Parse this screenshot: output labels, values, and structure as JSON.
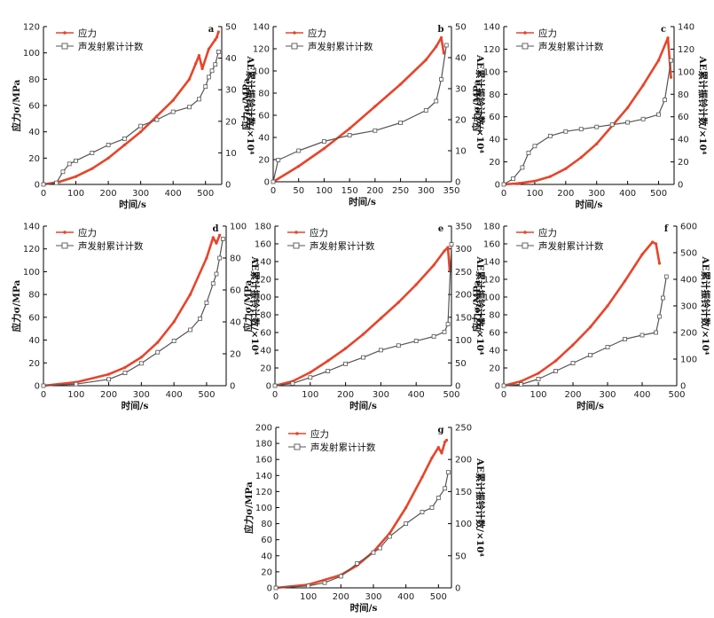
{
  "figure": {
    "legend": {
      "stress": "应力",
      "ae": "声发射累计计数"
    },
    "xlabel": "时间/s",
    "ylabel_left": "应力σ/MPa",
    "ylabel_right": "AE累计振铃计数/×10⁴",
    "colors": {
      "stress": "#e8442a",
      "ae": "#555555",
      "axis": "#000000"
    }
  },
  "chart_data": [
    {
      "panel": "a",
      "type": "line",
      "xlim": [
        0,
        550
      ],
      "xticks": [
        0,
        100,
        200,
        300,
        400,
        500
      ],
      "ylim_left": [
        0,
        120
      ],
      "yticks_left": [
        0,
        20,
        40,
        60,
        80,
        100,
        120
      ],
      "ylim_right": [
        0,
        50
      ],
      "yticks_right": [
        0,
        10,
        20,
        30,
        40,
        50
      ],
      "series": [
        {
          "name": "应力",
          "axis": "left",
          "x": [
            0,
            50,
            100,
            150,
            200,
            250,
            300,
            350,
            400,
            450,
            470,
            480,
            490,
            510,
            530,
            535,
            540
          ],
          "y": [
            0,
            2,
            6,
            12,
            20,
            30,
            40,
            52,
            64,
            80,
            92,
            98,
            88,
            103,
            110,
            112,
            116
          ]
        },
        {
          "name": "声发射累计计数",
          "axis": "right",
          "x": [
            0,
            40,
            60,
            80,
            100,
            150,
            200,
            250,
            300,
            350,
            400,
            450,
            480,
            500,
            510,
            520,
            530,
            540
          ],
          "y": [
            0,
            0.5,
            4,
            6.5,
            7.5,
            10,
            12.5,
            14.5,
            18.5,
            20.5,
            23,
            24.5,
            27,
            31,
            34,
            36,
            38,
            42
          ]
        }
      ]
    },
    {
      "panel": "b",
      "type": "line",
      "xlim": [
        0,
        350
      ],
      "xticks": [
        0,
        50,
        100,
        150,
        200,
        250,
        300,
        350
      ],
      "ylim_left": [
        0,
        140
      ],
      "yticks_left": [
        0,
        20,
        40,
        60,
        80,
        100,
        120,
        140
      ],
      "ylim_right": [
        0,
        50
      ],
      "yticks_right": [
        0,
        10,
        20,
        30,
        40,
        50
      ],
      "series": [
        {
          "name": "应力",
          "axis": "left",
          "x": [
            0,
            50,
            100,
            150,
            200,
            250,
            300,
            320,
            330,
            335
          ],
          "y": [
            0,
            14,
            30,
            48,
            68,
            88,
            110,
            122,
            130,
            116
          ]
        },
        {
          "name": "声发射累计计数",
          "axis": "right",
          "x": [
            0,
            10,
            50,
            100,
            150,
            200,
            250,
            300,
            320,
            330,
            340
          ],
          "y": [
            0,
            7,
            10,
            13,
            15,
            16.5,
            19,
            23,
            26,
            33,
            44
          ]
        }
      ]
    },
    {
      "panel": "c",
      "type": "line",
      "xlim": [
        0,
        550
      ],
      "xticks": [
        0,
        100,
        200,
        300,
        400,
        500
      ],
      "ylim_left": [
        0,
        140
      ],
      "yticks_left": [
        0,
        20,
        40,
        60,
        80,
        100,
        120,
        140
      ],
      "ylim_right": [
        0,
        140
      ],
      "yticks_right": [
        0,
        20,
        40,
        60,
        80,
        100,
        120,
        140
      ],
      "series": [
        {
          "name": "应力",
          "axis": "left",
          "x": [
            0,
            50,
            100,
            150,
            200,
            250,
            300,
            350,
            400,
            450,
            500,
            530,
            540
          ],
          "y": [
            0,
            1,
            3,
            7,
            14,
            24,
            36,
            52,
            68,
            88,
            110,
            130,
            95
          ]
        },
        {
          "name": "声发射累计计数",
          "axis": "right",
          "x": [
            0,
            30,
            60,
            80,
            100,
            150,
            200,
            250,
            300,
            350,
            400,
            450,
            500,
            520,
            540
          ],
          "y": [
            0,
            5,
            15,
            28,
            34,
            43,
            47,
            49,
            51,
            53,
            55,
            58,
            62,
            75,
            110
          ]
        }
      ]
    },
    {
      "panel": "d",
      "type": "line",
      "xlim": [
        0,
        560
      ],
      "xticks": [
        0,
        100,
        200,
        300,
        400,
        500
      ],
      "ylim_left": [
        0,
        140
      ],
      "yticks_left": [
        0,
        20,
        40,
        60,
        80,
        100,
        120,
        140
      ],
      "ylim_right": [
        0,
        100
      ],
      "yticks_right": [
        0,
        20,
        40,
        60,
        80,
        100
      ],
      "series": [
        {
          "name": "应力",
          "axis": "left",
          "x": [
            0,
            100,
            200,
            250,
            300,
            350,
            400,
            450,
            500,
            520,
            530,
            540
          ],
          "y": [
            0,
            3,
            10,
            16,
            25,
            38,
            56,
            80,
            112,
            130,
            125,
            132
          ]
        },
        {
          "name": "声发射累计计数",
          "axis": "right",
          "x": [
            0,
            100,
            200,
            250,
            300,
            350,
            400,
            450,
            480,
            500,
            520,
            530,
            540,
            550
          ],
          "y": [
            0,
            1,
            4,
            8,
            14,
            21,
            28,
            35,
            42,
            52,
            64,
            70,
            80,
            92
          ]
        }
      ]
    },
    {
      "panel": "e",
      "type": "line",
      "xlim": [
        0,
        500
      ],
      "xticks": [
        0,
        100,
        200,
        300,
        400,
        500
      ],
      "ylim_left": [
        0,
        180
      ],
      "yticks_left": [
        0,
        20,
        40,
        60,
        80,
        100,
        120,
        140,
        160,
        180
      ],
      "ylim_right": [
        0,
        350
      ],
      "yticks_right": [
        0,
        50,
        100,
        150,
        200,
        250,
        300,
        350
      ],
      "series": [
        {
          "name": "应力",
          "axis": "left",
          "x": [
            0,
            50,
            100,
            150,
            200,
            250,
            300,
            350,
            400,
            450,
            480,
            490,
            495
          ],
          "y": [
            0,
            5,
            15,
            28,
            42,
            58,
            76,
            94,
            114,
            136,
            152,
            156,
            130
          ]
        },
        {
          "name": "声发射累计计数",
          "axis": "right",
          "x": [
            0,
            50,
            100,
            150,
            200,
            250,
            300,
            350,
            400,
            450,
            480,
            490,
            500
          ],
          "y": [
            0,
            5,
            18,
            32,
            48,
            62,
            78,
            88,
            98,
            108,
            118,
            135,
            310
          ]
        }
      ]
    },
    {
      "panel": "f",
      "type": "line",
      "xlim": [
        0,
        500
      ],
      "xticks": [
        0,
        100,
        200,
        300,
        400,
        500
      ],
      "ylim_left": [
        0,
        180
      ],
      "yticks_left": [
        0,
        20,
        40,
        60,
        80,
        100,
        120,
        140,
        160,
        180
      ],
      "ylim_right": [
        0,
        600
      ],
      "yticks_right": [
        0,
        100,
        200,
        300,
        400,
        500,
        600
      ],
      "series": [
        {
          "name": "应力",
          "axis": "left",
          "x": [
            0,
            50,
            100,
            150,
            200,
            250,
            300,
            350,
            400,
            430,
            440,
            450
          ],
          "y": [
            0,
            5,
            14,
            28,
            46,
            66,
            90,
            118,
            148,
            162,
            160,
            138
          ]
        },
        {
          "name": "声发射累计计数",
          "axis": "right",
          "x": [
            0,
            50,
            100,
            150,
            200,
            250,
            300,
            350,
            400,
            440,
            450,
            460,
            470
          ],
          "y": [
            0,
            5,
            25,
            55,
            85,
            115,
            145,
            175,
            190,
            200,
            260,
            330,
            410
          ]
        }
      ]
    },
    {
      "panel": "g",
      "type": "line",
      "xlim": [
        0,
        540
      ],
      "xticks": [
        0,
        100,
        200,
        300,
        400,
        500
      ],
      "ylim_left": [
        0,
        200
      ],
      "yticks_left": [
        0,
        20,
        40,
        60,
        80,
        100,
        120,
        140,
        160,
        180,
        200
      ],
      "ylim_right": [
        0,
        250
      ],
      "yticks_right": [
        0,
        50,
        100,
        150,
        200,
        250
      ],
      "series": [
        {
          "name": "应力",
          "axis": "left",
          "x": [
            0,
            100,
            200,
            250,
            300,
            350,
            400,
            450,
            480,
            500,
            510,
            520,
            525
          ],
          "y": [
            0,
            4,
            16,
            28,
            45,
            68,
            100,
            138,
            162,
            175,
            168,
            182,
            184
          ]
        },
        {
          "name": "声发射累计计数",
          "axis": "right",
          "x": [
            0,
            100,
            150,
            200,
            250,
            300,
            320,
            350,
            400,
            450,
            480,
            500,
            520,
            530
          ],
          "y": [
            0,
            3,
            8,
            18,
            38,
            55,
            62,
            80,
            100,
            118,
            125,
            140,
            155,
            180
          ]
        }
      ]
    }
  ]
}
